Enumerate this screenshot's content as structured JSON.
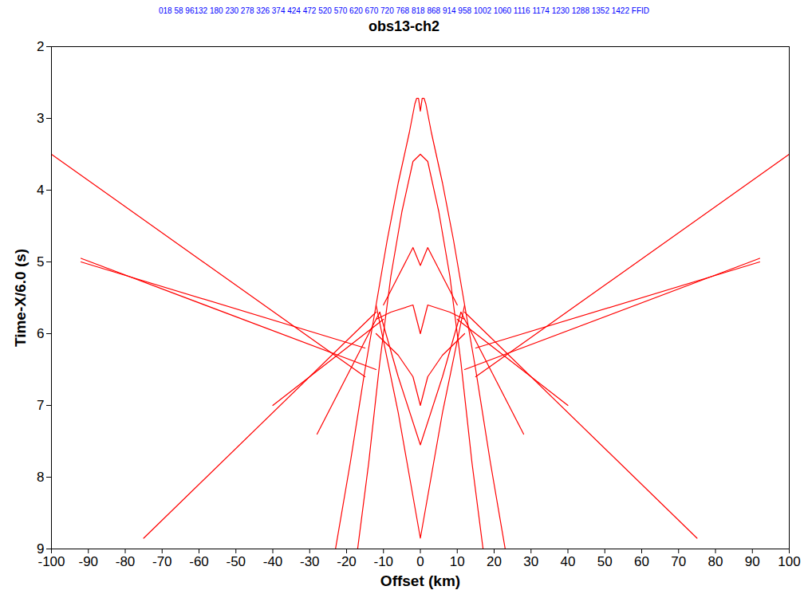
{
  "chart_data": {
    "type": "line",
    "title": "obs13-ch2",
    "annotations": [
      "018 58 96132 180 230 278 326 374 424 472 520 570 620 670 720 768 818 868 914 958 1002 1060 1116 1174 1230 1288 1352 1422 FFID"
    ],
    "x_label": "Offset (km)",
    "y_label": "Time-X/6.0 (s)",
    "xlim": [
      -100,
      100
    ],
    "ylim": [
      2,
      9
    ],
    "xticks": [
      -100,
      -90,
      -80,
      -70,
      -60,
      -50,
      -40,
      -30,
      -20,
      -10,
      0,
      10,
      20,
      30,
      40,
      50,
      60,
      70,
      80,
      90,
      100
    ],
    "yticks": [
      2,
      3,
      4,
      5,
      6,
      7,
      8,
      9
    ],
    "grid": false,
    "series": [
      {
        "color": "#ff0000",
        "x": [
          -23,
          -19,
          -15,
          -12,
          -9,
          -6,
          -3,
          -1.5,
          -1,
          -0.5,
          0,
          0.5,
          1,
          1.5,
          3,
          6,
          9,
          12,
          15,
          19,
          23
        ],
        "values": [
          9,
          7.8,
          6.5,
          5.6,
          4.7,
          3.9,
          3.2,
          2.8,
          2.72,
          2.72,
          2.9,
          2.72,
          2.72,
          2.8,
          3.2,
          3.9,
          4.7,
          5.6,
          6.5,
          7.8,
          9
        ]
      },
      {
        "color": "#ff0000",
        "x": [
          -17,
          -14,
          -11,
          -8,
          -5,
          -2,
          0,
          2,
          5,
          8,
          11,
          14,
          17
        ],
        "values": [
          9,
          7.8,
          6.4,
          5.2,
          4.3,
          3.6,
          3.5,
          3.6,
          4.3,
          5.2,
          6.4,
          7.8,
          9
        ]
      },
      {
        "color": "#ff0000",
        "x": [
          -10,
          -6,
          -2,
          0,
          2,
          6,
          10
        ],
        "values": [
          5.6,
          5.2,
          4.8,
          5.05,
          4.8,
          5.2,
          5.6
        ]
      },
      {
        "color": "#ff0000",
        "x": [
          -12,
          -8,
          -2,
          0,
          2,
          8,
          12
        ],
        "values": [
          5.8,
          5.7,
          5.6,
          6.0,
          5.6,
          5.7,
          5.8
        ]
      },
      {
        "color": "#ff0000",
        "x": [
          -12,
          -6,
          -2,
          0,
          2,
          6,
          12
        ],
        "values": [
          6.0,
          6.3,
          6.6,
          7.0,
          6.6,
          6.3,
          6.0
        ]
      },
      {
        "color": "#ff0000",
        "x": [
          -11,
          -6,
          0,
          6,
          11
        ],
        "values": [
          5.7,
          6.6,
          7.55,
          6.6,
          5.7
        ]
      },
      {
        "color": "#ff0000",
        "x": [
          -12,
          -6,
          0,
          6,
          12
        ],
        "values": [
          5.6,
          7.1,
          8.85,
          7.1,
          5.6
        ]
      },
      {
        "color": "#ff0000",
        "x": [
          -100,
          -15
        ],
        "values": [
          3.5,
          6.6
        ]
      },
      {
        "color": "#ff0000",
        "x": [
          -92,
          -12
        ],
        "values": [
          4.95,
          6.5
        ]
      },
      {
        "color": "#ff0000",
        "x": [
          -92,
          -15
        ],
        "values": [
          5.0,
          6.2
        ]
      },
      {
        "color": "#ff0000",
        "x": [
          -75,
          -12
        ],
        "values": [
          8.85,
          5.7
        ]
      },
      {
        "color": "#ff0000",
        "x": [
          -40,
          -10
        ],
        "values": [
          7.0,
          5.8
        ]
      },
      {
        "color": "#ff0000",
        "x": [
          -28,
          -11
        ],
        "values": [
          7.4,
          5.7
        ]
      },
      {
        "color": "#ff0000",
        "x": [
          100,
          15
        ],
        "values": [
          3.5,
          6.6
        ]
      },
      {
        "color": "#ff0000",
        "x": [
          92,
          12
        ],
        "values": [
          4.95,
          6.5
        ]
      },
      {
        "color": "#ff0000",
        "x": [
          92,
          15
        ],
        "values": [
          5.0,
          6.2
        ]
      },
      {
        "color": "#ff0000",
        "x": [
          75,
          12
        ],
        "values": [
          8.85,
          5.7
        ]
      },
      {
        "color": "#ff0000",
        "x": [
          40,
          10
        ],
        "values": [
          7.0,
          5.8
        ]
      },
      {
        "color": "#ff0000",
        "x": [
          28,
          11
        ],
        "values": [
          7.4,
          5.7
        ]
      }
    ]
  }
}
